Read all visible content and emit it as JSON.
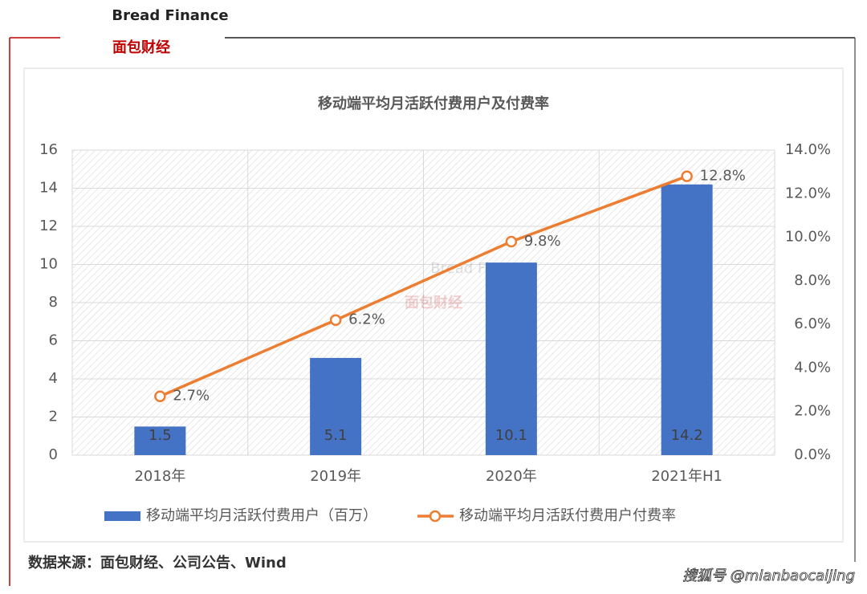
{
  "header": {
    "logo": "面包财经",
    "logo_en": "Bread Finance"
  },
  "chart_data": {
    "type": "bar",
    "title": "移动端平均月活跃付费用户及付费率",
    "categories": [
      "2018年",
      "2019年",
      "2020年",
      "2021年H1"
    ],
    "series": [
      {
        "name": "移动端平均月活跃付费用户（百万）",
        "type": "bar",
        "color": "#4472c4",
        "values": [
          1.5,
          5.1,
          10.1,
          14.2
        ]
      },
      {
        "name": "移动端平均月活跃付费用户付费率",
        "type": "line",
        "axis": "y2",
        "color": "#ed7d31",
        "values": [
          2.7,
          6.2,
          9.8,
          12.8
        ],
        "value_labels": [
          "2.7%",
          "6.2%",
          "9.8%",
          "12.8%"
        ]
      }
    ],
    "ylim": [
      0,
      16
    ],
    "yticks": [
      0,
      2,
      4,
      6,
      8,
      10,
      12,
      14,
      16
    ],
    "y2lim": [
      0,
      14
    ],
    "y2ticks": [
      {
        "value": 0,
        "label": "0.0%"
      },
      {
        "value": 2,
        "label": "2.0%"
      },
      {
        "value": 4,
        "label": "4.0%"
      },
      {
        "value": 6,
        "label": "6.0%"
      },
      {
        "value": 8,
        "label": "8.0%"
      },
      {
        "value": 10,
        "label": "10.0%"
      },
      {
        "value": 12,
        "label": "12.0%"
      },
      {
        "value": 14,
        "label": "14.0%"
      }
    ],
    "grid": true,
    "legend": "bottom"
  },
  "footer": {
    "source": "数据来源：面包财经、公司公告、Wind",
    "watermark": "搜狐号 @mianbaocaijing"
  }
}
